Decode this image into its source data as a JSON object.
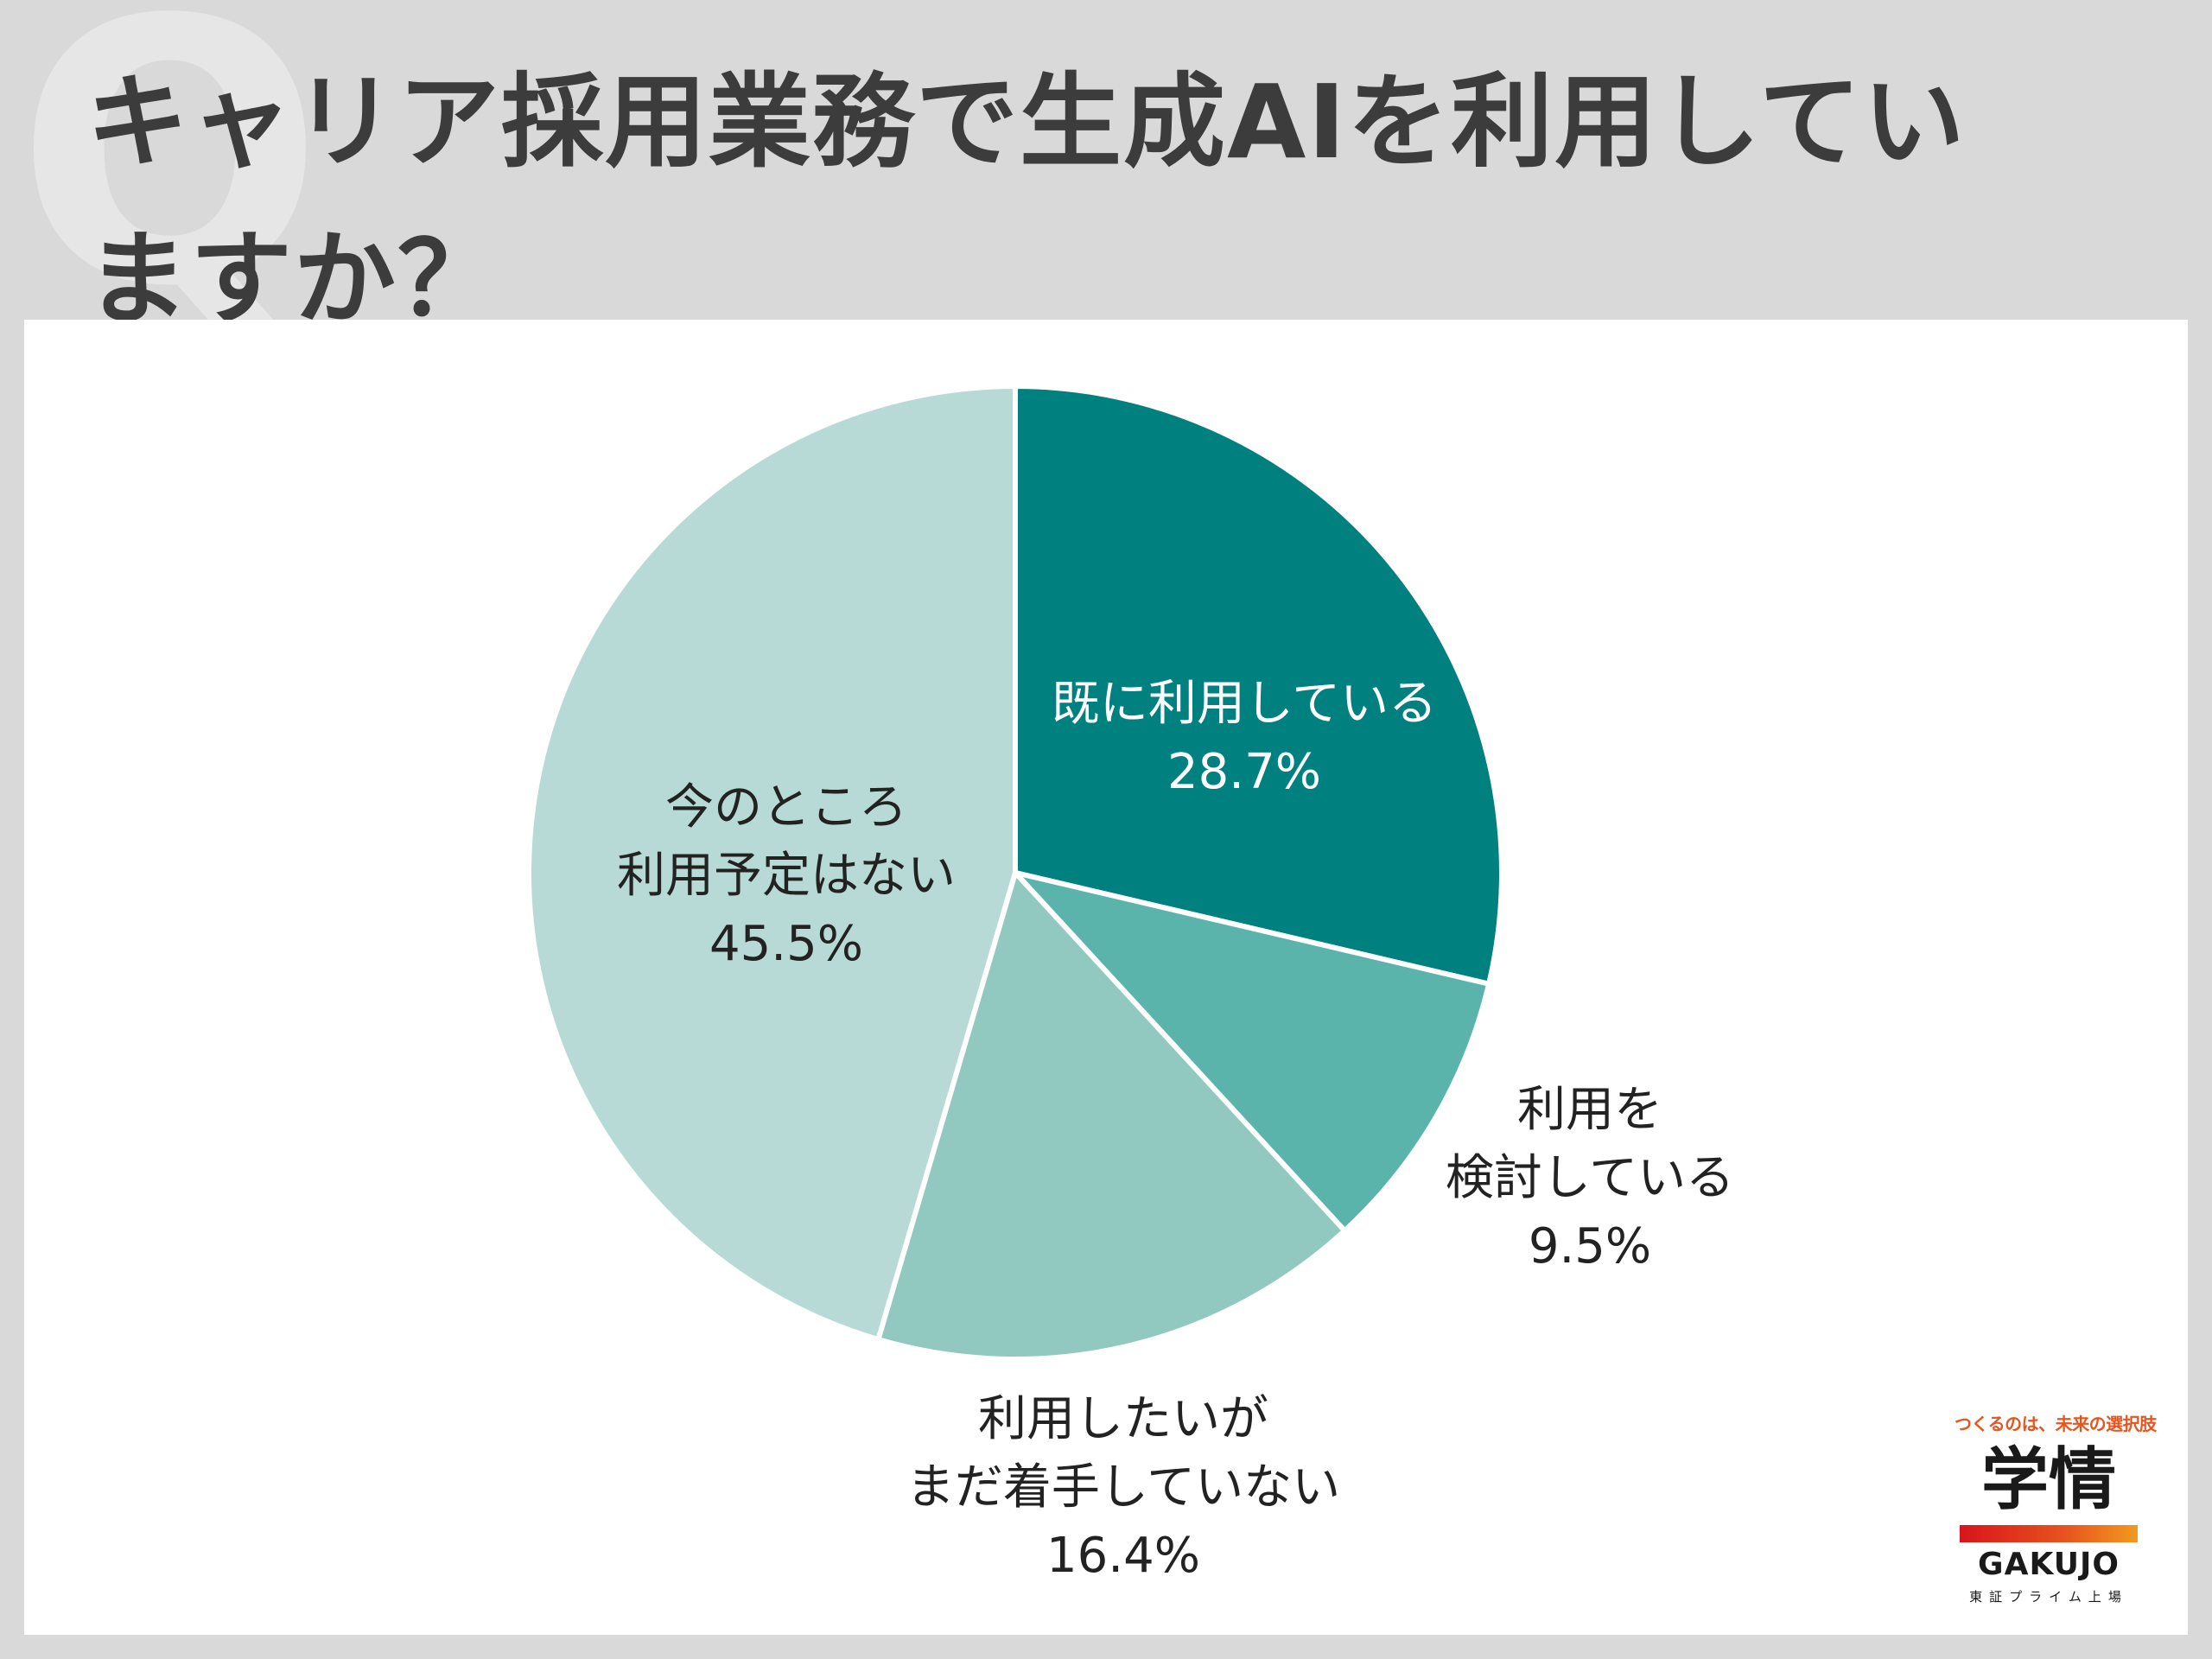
{
  "question_mark": "Q",
  "title": "キャリア採用業務で生成AIを利用していますか？",
  "chart_data": {
    "type": "pie",
    "title": "キャリア採用業務で生成AIを利用していますか？",
    "slices": [
      {
        "label": "既に利用している",
        "value": 28.7,
        "value_label": "28.7%",
        "color": "#00807f"
      },
      {
        "label": "利用を検討している",
        "value": 9.5,
        "value_label": "9.5%",
        "color": "#5ab4ac"
      },
      {
        "label": "利用したいがまだ着手していない",
        "value": 16.4,
        "value_label": "16.4%",
        "color": "#91c9c0"
      },
      {
        "label": "今のところ利用予定はない",
        "value": 45.5,
        "value_label": "45.5%",
        "color": "#b8dad6"
      }
    ],
    "label_lines": [
      [
        "既に利用している"
      ],
      [
        "利用を",
        "検討している"
      ],
      [
        "利用したいが",
        "まだ着手していない"
      ],
      [
        "今のところ",
        "利用予定はない"
      ]
    ],
    "start_angle": "12 o'clock",
    "direction": "clockwise",
    "legend": "none"
  },
  "brand": {
    "tagline": "つくるのは、未来の選択肢",
    "name_kanji": "学情",
    "name_roman": "GAKUJO",
    "market": "東証プライム上場"
  }
}
